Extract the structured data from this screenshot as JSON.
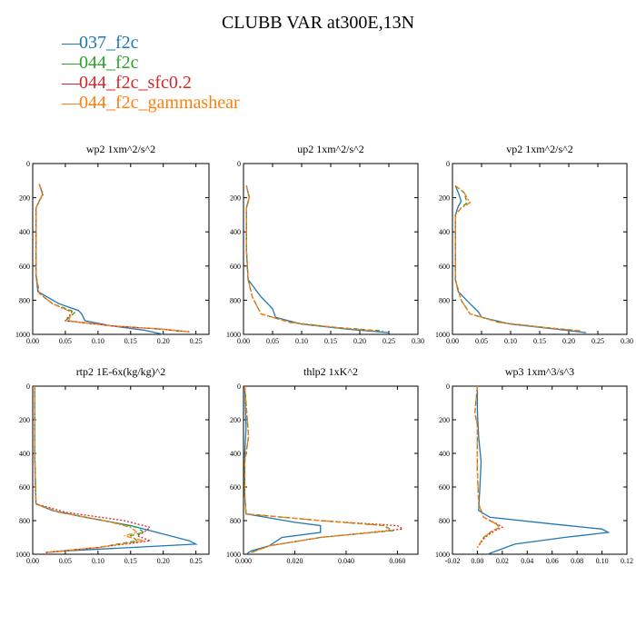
{
  "figure": {
    "title": "CLUBB VAR at300E,13N",
    "legend": [
      {
        "label": "037_f2c",
        "color": "#1f77b4",
        "style": "solid"
      },
      {
        "label": "044_f2c",
        "color": "#2ca02c",
        "style": "dashed"
      },
      {
        "label": "044_f2c_sfc0.2",
        "color": "#d62728",
        "style": "dotted"
      },
      {
        "label": "044_f2c_gammashear",
        "color": "#ff7f0e",
        "style": "dashdot"
      }
    ]
  },
  "chart_data": [
    {
      "type": "line",
      "title": "wp2   1xm^2/s^2",
      "xlim": [
        0,
        0.27
      ],
      "xticks": [
        "0.00",
        "0.05",
        "0.10",
        "0.15",
        "0.20",
        "0.25"
      ],
      "xtick_values": [
        0,
        0.05,
        0.1,
        0.15,
        0.2,
        0.25
      ],
      "ylim": [
        1000,
        0
      ],
      "yticks": [
        "0",
        "200",
        "400",
        "600",
        "800",
        "1000"
      ],
      "series": [
        {
          "name": "037_f2c",
          "x": [
            0.01,
            0.015,
            0.01,
            0.005,
            0.005,
            0.005,
            0.005,
            0.008,
            0.04,
            0.07,
            0.075,
            0.08,
            0.12,
            0.17,
            0.2
          ],
          "y": [
            120,
            180,
            220,
            260,
            350,
            500,
            650,
            750,
            820,
            860,
            880,
            920,
            950,
            975,
            1000
          ]
        },
        {
          "name": "044_f2c",
          "x": [
            0.01,
            0.015,
            0.01,
            0.005,
            0.005,
            0.005,
            0.005,
            0.01,
            0.03,
            0.065,
            0.05,
            0.12,
            0.2,
            0.23
          ],
          "y": [
            120,
            180,
            220,
            260,
            350,
            500,
            650,
            760,
            820,
            870,
            920,
            950,
            970,
            985
          ]
        },
        {
          "name": "044_f2c_sfc0.2",
          "x": [
            0.01,
            0.016,
            0.01,
            0.005,
            0.005,
            0.005,
            0.005,
            0.01,
            0.03,
            0.06,
            0.05,
            0.12,
            0.2,
            0.24
          ],
          "y": [
            120,
            180,
            220,
            260,
            350,
            500,
            650,
            760,
            820,
            870,
            920,
            950,
            970,
            985
          ]
        },
        {
          "name": "044_f2c_gammashear",
          "x": [
            0.01,
            0.015,
            0.01,
            0.005,
            0.005,
            0.005,
            0.005,
            0.01,
            0.03,
            0.06,
            0.055,
            0.12,
            0.2,
            0.24
          ],
          "y": [
            120,
            180,
            220,
            260,
            350,
            500,
            650,
            760,
            820,
            870,
            920,
            950,
            970,
            985
          ]
        }
      ]
    },
    {
      "type": "line",
      "title": "up2   1xm^2/s^2",
      "xlim": [
        0,
        0.3
      ],
      "xticks": [
        "0.00",
        "0.05",
        "0.10",
        "0.15",
        "0.20",
        "0.25",
        "0.30"
      ],
      "xtick_values": [
        0,
        0.05,
        0.1,
        0.15,
        0.2,
        0.25,
        0.3
      ],
      "ylim": [
        1000,
        0
      ],
      "yticks": [
        "0",
        "200",
        "400",
        "600",
        "800",
        "1000"
      ],
      "series": [
        {
          "name": "037_f2c",
          "x": [
            0.005,
            0.01,
            0.005,
            0.005,
            0.005,
            0.008,
            0.03,
            0.05,
            0.055,
            0.1,
            0.18,
            0.25
          ],
          "y": [
            130,
            200,
            260,
            350,
            500,
            680,
            780,
            850,
            900,
            940,
            970,
            990
          ]
        },
        {
          "name": "044_f2c",
          "x": [
            0.005,
            0.01,
            0.005,
            0.005,
            0.005,
            0.008,
            0.015,
            0.03,
            0.08,
            0.16,
            0.24
          ],
          "y": [
            130,
            200,
            260,
            350,
            500,
            680,
            780,
            880,
            930,
            960,
            980
          ]
        },
        {
          "name": "044_f2c_sfc0.2",
          "x": [
            0.005,
            0.01,
            0.005,
            0.005,
            0.005,
            0.008,
            0.015,
            0.03,
            0.08,
            0.16,
            0.23
          ],
          "y": [
            130,
            200,
            260,
            350,
            500,
            680,
            780,
            880,
            930,
            960,
            980
          ]
        },
        {
          "name": "044_f2c_gammashear",
          "x": [
            0.005,
            0.01,
            0.005,
            0.005,
            0.005,
            0.008,
            0.015,
            0.03,
            0.08,
            0.16,
            0.23
          ],
          "y": [
            130,
            200,
            260,
            350,
            500,
            680,
            780,
            880,
            930,
            960,
            980
          ]
        }
      ]
    },
    {
      "type": "line",
      "title": "vp2   1xm^2/s^2",
      "xlim": [
        0,
        0.3
      ],
      "xticks": [
        "0.00",
        "0.05",
        "0.10",
        "0.15",
        "0.20",
        "0.25",
        "0.30"
      ],
      "xtick_values": [
        0,
        0.05,
        0.1,
        0.15,
        0.2,
        0.25,
        0.3
      ],
      "ylim": [
        1000,
        0
      ],
      "yticks": [
        "0",
        "200",
        "400",
        "600",
        "800",
        "1000"
      ],
      "series": [
        {
          "name": "037_f2c",
          "x": [
            0.005,
            0.01,
            0.015,
            0.01,
            0.005,
            0.005,
            0.005,
            0.01,
            0.03,
            0.045,
            0.05,
            0.1,
            0.18,
            0.23
          ],
          "y": [
            130,
            170,
            220,
            250,
            300,
            500,
            680,
            750,
            820,
            870,
            900,
            940,
            970,
            990
          ]
        },
        {
          "name": "044_f2c",
          "x": [
            0.005,
            0.02,
            0.025,
            0.015,
            0.005,
            0.005,
            0.005,
            0.015,
            0.03,
            0.08,
            0.16,
            0.22
          ],
          "y": [
            130,
            170,
            230,
            260,
            300,
            500,
            680,
            800,
            880,
            930,
            960,
            980
          ]
        },
        {
          "name": "044_f2c_sfc0.2",
          "x": [
            0.005,
            0.02,
            0.03,
            0.015,
            0.005,
            0.005,
            0.005,
            0.015,
            0.03,
            0.08,
            0.16,
            0.22
          ],
          "y": [
            130,
            170,
            230,
            260,
            300,
            500,
            680,
            800,
            880,
            930,
            960,
            980
          ]
        },
        {
          "name": "044_f2c_gammashear",
          "x": [
            0.005,
            0.02,
            0.03,
            0.015,
            0.005,
            0.005,
            0.005,
            0.015,
            0.03,
            0.08,
            0.16,
            0.22
          ],
          "y": [
            130,
            170,
            230,
            260,
            300,
            500,
            680,
            800,
            880,
            930,
            960,
            980
          ]
        }
      ]
    },
    {
      "type": "line",
      "title": "rtp2   1E-6x(kg/kg)^2",
      "xlim": [
        0,
        0.27
      ],
      "xticks": [
        "0.00",
        "0.05",
        "0.10",
        "0.15",
        "0.20",
        "0.25"
      ],
      "xtick_values": [
        0,
        0.05,
        0.1,
        0.15,
        0.2,
        0.25
      ],
      "ylim": [
        1000,
        0
      ],
      "yticks": [
        "0",
        "200",
        "400",
        "600",
        "800",
        "1000"
      ],
      "series": [
        {
          "name": "037_f2c",
          "x": [
            0.003,
            0.003,
            0.005,
            0.03,
            0.08,
            0.15,
            0.2,
            0.24,
            0.25,
            0.15,
            0.05,
            0.02
          ],
          "y": [
            0,
            400,
            700,
            740,
            780,
            830,
            880,
            920,
            940,
            960,
            980,
            990
          ]
        },
        {
          "name": "044_f2c",
          "x": [
            0.003,
            0.003,
            0.005,
            0.04,
            0.11,
            0.16,
            0.17,
            0.15,
            0.16,
            0.1,
            0.02
          ],
          "y": [
            0,
            400,
            700,
            750,
            800,
            840,
            870,
            890,
            920,
            960,
            990
          ]
        },
        {
          "name": "044_f2c_sfc0.2",
          "x": [
            0.003,
            0.003,
            0.005,
            0.05,
            0.14,
            0.18,
            0.17,
            0.16,
            0.18,
            0.1,
            0.02
          ],
          "y": [
            0,
            400,
            700,
            750,
            800,
            840,
            870,
            890,
            920,
            960,
            990
          ]
        },
        {
          "name": "044_f2c_gammashear",
          "x": [
            0.003,
            0.003,
            0.005,
            0.04,
            0.11,
            0.15,
            0.16,
            0.14,
            0.17,
            0.1,
            0.02
          ],
          "y": [
            0,
            400,
            700,
            750,
            800,
            840,
            870,
            890,
            920,
            960,
            990
          ]
        }
      ]
    },
    {
      "type": "line",
      "title": "thlp2   1xK^2",
      "xlim": [
        0,
        0.068
      ],
      "xticks": [
        "0.000",
        "0.020",
        "0.040",
        "0.060"
      ],
      "xtick_values": [
        0,
        0.02,
        0.04,
        0.06
      ],
      "ylim": [
        1000,
        0
      ],
      "yticks": [
        "0",
        "200",
        "400",
        "600",
        "800",
        "1000"
      ],
      "series": [
        {
          "name": "037_f2c",
          "x": [
            0.0005,
            0.001,
            0.0005,
            0.0005,
            0.001,
            0.02,
            0.03,
            0.03,
            0.015,
            0.01,
            0.003,
            0.001
          ],
          "y": [
            0,
            250,
            400,
            650,
            760,
            810,
            830,
            870,
            900,
            950,
            980,
            1000
          ]
        },
        {
          "name": "044_f2c",
          "x": [
            0.0005,
            0.002,
            0.0005,
            0.0005,
            0.001,
            0.03,
            0.055,
            0.058,
            0.03,
            0.01,
            0.003
          ],
          "y": [
            0,
            300,
            450,
            650,
            760,
            800,
            830,
            860,
            900,
            950,
            990
          ]
        },
        {
          "name": "044_f2c_sfc0.2",
          "x": [
            0.0005,
            0.002,
            0.0005,
            0.0005,
            0.001,
            0.03,
            0.06,
            0.062,
            0.03,
            0.01,
            0.003
          ],
          "y": [
            0,
            300,
            450,
            650,
            760,
            800,
            830,
            850,
            900,
            950,
            990
          ]
        },
        {
          "name": "044_f2c_gammashear",
          "x": [
            0.0005,
            0.002,
            0.0005,
            0.0005,
            0.001,
            0.03,
            0.055,
            0.057,
            0.03,
            0.01,
            0.003
          ],
          "y": [
            0,
            300,
            450,
            650,
            760,
            800,
            830,
            860,
            900,
            950,
            990
          ]
        }
      ]
    },
    {
      "type": "line",
      "title": "wp3   1xm^3/s^3",
      "xlim": [
        -0.02,
        0.12
      ],
      "xticks": [
        "-0.02",
        "0.00",
        "0.02",
        "0.04",
        "0.06",
        "0.08",
        "0.10",
        "0.12"
      ],
      "xtick_values": [
        -0.02,
        0,
        0.02,
        0.04,
        0.06,
        0.08,
        0.1,
        0.12
      ],
      "ylim": [
        1000,
        0
      ],
      "yticks": [
        "0",
        "200",
        "400",
        "600",
        "800",
        "1000"
      ],
      "series": [
        {
          "name": "037_f2c",
          "x": [
            0,
            0,
            0.001,
            0.003,
            0.002,
            0.001,
            0.01,
            0.06,
            0.1,
            0.105,
            0.07,
            0.03,
            0.008
          ],
          "y": [
            0,
            150,
            300,
            450,
            600,
            740,
            780,
            820,
            850,
            870,
            900,
            940,
            1000
          ]
        },
        {
          "name": "044_f2c",
          "x": [
            0,
            -0.002,
            0,
            0,
            0,
            0.001,
            0.005,
            0.015,
            0.018,
            0.012,
            0.005,
            0
          ],
          "y": [
            0,
            160,
            230,
            300,
            500,
            700,
            780,
            820,
            840,
            860,
            900,
            960
          ]
        },
        {
          "name": "044_f2c_sfc0.2",
          "x": [
            0,
            -0.002,
            0,
            0,
            0,
            0.001,
            0.005,
            0.016,
            0.02,
            0.014,
            0.006,
            0
          ],
          "y": [
            0,
            160,
            230,
            300,
            500,
            700,
            780,
            820,
            840,
            860,
            900,
            960
          ]
        },
        {
          "name": "044_f2c_gammashear",
          "x": [
            0,
            -0.002,
            0,
            0,
            0,
            0.001,
            0.005,
            0.015,
            0.018,
            0.012,
            0.005,
            0
          ],
          "y": [
            0,
            160,
            230,
            300,
            500,
            700,
            780,
            820,
            840,
            860,
            900,
            960
          ]
        }
      ]
    }
  ]
}
